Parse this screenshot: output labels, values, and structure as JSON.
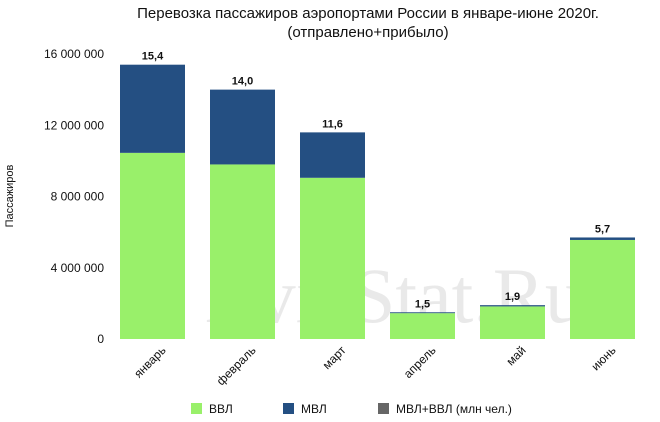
{
  "chart_data": {
    "type": "bar",
    "stacked": true,
    "title_line1": "Перевозка пассажиров аэропортами России в январе-июне 2020г.",
    "title_line2": "(отправлено+прибыло)",
    "ylabel": "Пассажиров",
    "ylim": [
      0,
      16000000
    ],
    "yticks": [
      "0",
      "4 000 000",
      "8 000 000",
      "12 000 000",
      "16 000 000"
    ],
    "ytick_values": [
      0,
      4000000,
      8000000,
      12000000,
      16000000
    ],
    "categories": [
      "январь",
      "февраль",
      "март",
      "апрель",
      "май",
      "июнь"
    ],
    "series": [
      {
        "name": "ВВЛ",
        "color": "#99f06a",
        "values": [
          10450000,
          9800000,
          9050000,
          1450000,
          1830000,
          5560000
        ]
      },
      {
        "name": "МВЛ",
        "color": "#244f82",
        "values": [
          4950000,
          4200000,
          2550000,
          50000,
          70000,
          140000
        ]
      }
    ],
    "total_series": {
      "name": "МВЛ+ВВЛ (млн чел.)",
      "color": "#666666",
      "labels": [
        "15,4",
        "14,0",
        "11,6",
        "1,5",
        "1,9",
        "5,7"
      ]
    },
    "legend_position": "bottom",
    "grid": false,
    "watermark": "AviaStat.Ru"
  }
}
